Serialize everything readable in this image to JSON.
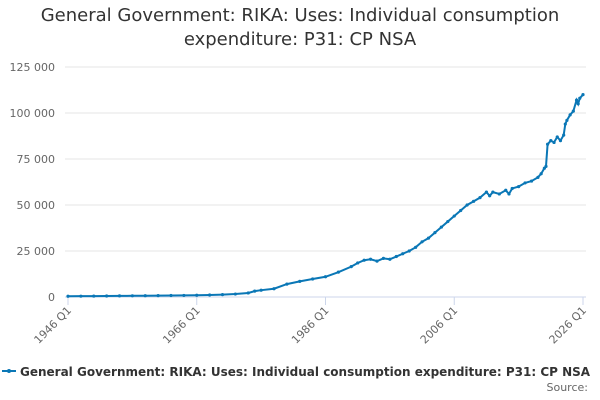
{
  "chart_data": {
    "type": "line",
    "title": "General Government: RIKA: Uses: Individual consumption expenditure: P31: CP NSA",
    "source": "Source:",
    "x": [
      1946,
      1948,
      1950,
      1952,
      1954,
      1956,
      1958,
      1960,
      1962,
      1964,
      1966,
      1968,
      1970,
      1972,
      1974,
      1975,
      1976,
      1978,
      1980,
      1982,
      1984,
      1986,
      1988,
      1990,
      1991,
      1992,
      1993,
      1994,
      1995,
      1996,
      1997,
      1998,
      1999,
      2000,
      2001,
      2002,
      2003,
      2004,
      2005,
      2006,
      2007,
      2008,
      2009,
      2010,
      2011,
      2011.5,
      2012,
      2013,
      2014,
      2014.5,
      2015,
      2016,
      2017,
      2018,
      2019,
      2019.5,
      2020,
      2020.25,
      2020.5,
      2021,
      2021.5,
      2022,
      2022.5,
      2023,
      2023.25,
      2023.5,
      2024,
      2024.5,
      2025,
      2025.25,
      2025.5,
      2026
    ],
    "series": [
      {
        "name": "General Government: RIKA: Uses: Individual consumption expenditure: P31: CP NSA",
        "color": "#0a77b6",
        "values": [
          400,
          450,
          500,
          550,
          600,
          650,
          700,
          750,
          800,
          850,
          950,
          1100,
          1300,
          1600,
          2200,
          3200,
          3700,
          4500,
          7000,
          8500,
          9800,
          11000,
          13500,
          16500,
          18500,
          20000,
          20500,
          19500,
          21000,
          20500,
          22000,
          23500,
          25000,
          27000,
          30000,
          32000,
          35000,
          38000,
          41000,
          44000,
          47000,
          50000,
          52000,
          54000,
          57000,
          55000,
          57000,
          56000,
          58000,
          56000,
          59000,
          60000,
          62000,
          63000,
          65000,
          67000,
          70000,
          71000,
          83000,
          85000,
          84000,
          87000,
          85000,
          88000,
          94000,
          96000,
          99000,
          101000,
          107000,
          105000,
          108000,
          110000
        ]
      }
    ],
    "xlim": [
      1946,
      2026
    ],
    "xticks": [
      {
        "value": 1946,
        "label": "1946 Q1"
      },
      {
        "value": 1966,
        "label": "1966 Q1"
      },
      {
        "value": 1986,
        "label": "1986 Q1"
      },
      {
        "value": 2006,
        "label": "2006 Q1"
      },
      {
        "value": 2026,
        "label": "2026 Q1"
      }
    ],
    "ylim": [
      0,
      125000
    ],
    "yticks": [
      0,
      {
        "value": 25000,
        "label": "25 000"
      },
      {
        "value": 50000,
        "label": "50 000"
      },
      {
        "value": 75000,
        "label": "75 000"
      },
      {
        "value": 100000,
        "label": "100 000"
      },
      {
        "value": 125000,
        "label": "125 000"
      }
    ],
    "grid": true,
    "legend": "bottom"
  }
}
